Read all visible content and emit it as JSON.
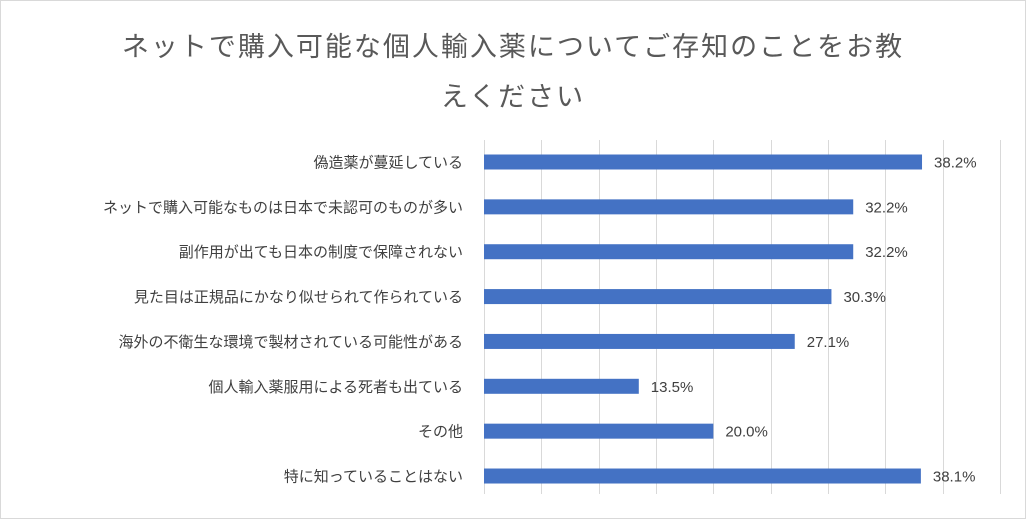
{
  "chart_data": {
    "type": "bar",
    "orientation": "horizontal",
    "title_lines": [
      "ネットで購入可能な個人輸入薬についてご存知のことをお教",
      "えください"
    ],
    "categories": [
      "偽造薬が蔓延している",
      "ネットで購入可能なものは日本で未認可のものが多い",
      "副作用が出ても日本の制度で保障されない",
      "見た目は正規品にかなり似せられて作られている",
      "海外の不衛生な環境で製材されている可能性がある",
      "個人輸入薬服用による死者も出ている",
      "その他",
      "特に知っていることはない"
    ],
    "values": [
      38.2,
      32.2,
      32.2,
      30.3,
      27.1,
      13.5,
      20.0,
      38.1
    ],
    "data_labels": [
      "38.2%",
      "32.2%",
      "32.2%",
      "30.3%",
      "27.1%",
      "13.5%",
      "20.0%",
      "38.1%"
    ],
    "xlim": [
      0,
      45
    ],
    "grid_step": 5,
    "grid": true,
    "bar_color": "#4472c4",
    "grid_color": "#d9d9d9",
    "text_color": "#404040"
  }
}
